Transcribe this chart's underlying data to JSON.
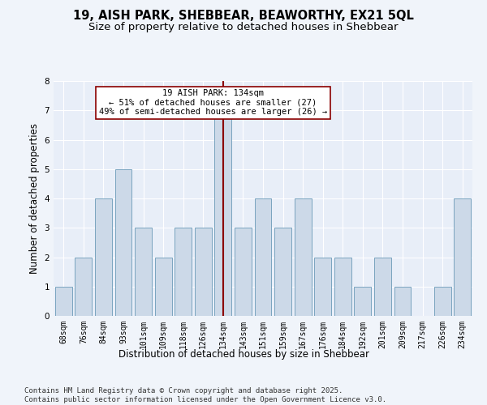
{
  "title": "19, AISH PARK, SHEBBEAR, BEAWORTHY, EX21 5QL",
  "subtitle": "Size of property relative to detached houses in Shebbear",
  "xlabel": "Distribution of detached houses by size in Shebbear",
  "ylabel": "Number of detached properties",
  "categories": [
    "68sqm",
    "76sqm",
    "84sqm",
    "93sqm",
    "101sqm",
    "109sqm",
    "118sqm",
    "126sqm",
    "134sqm",
    "143sqm",
    "151sqm",
    "159sqm",
    "167sqm",
    "176sqm",
    "184sqm",
    "192sqm",
    "201sqm",
    "209sqm",
    "217sqm",
    "226sqm",
    "234sqm"
  ],
  "values": [
    1,
    2,
    4,
    5,
    3,
    2,
    3,
    3,
    7,
    3,
    4,
    3,
    4,
    2,
    2,
    1,
    2,
    1,
    0,
    1,
    4
  ],
  "bar_color": "#ccd9e8",
  "bar_edge_color": "#6a9ab8",
  "vline_color": "#8b0000",
  "vline_index": 8,
  "annotation_text": "19 AISH PARK: 134sqm\n← 51% of detached houses are smaller (27)\n49% of semi-detached houses are larger (26) →",
  "annotation_box_facecolor": "#ffffff",
  "annotation_box_edgecolor": "#8b0000",
  "ylim": [
    0,
    8
  ],
  "yticks": [
    0,
    1,
    2,
    3,
    4,
    5,
    6,
    7,
    8
  ],
  "fig_facecolor": "#f0f4fa",
  "ax_facecolor": "#e8eef8",
  "grid_color": "#ffffff",
  "footer": "Contains HM Land Registry data © Crown copyright and database right 2025.\nContains public sector information licensed under the Open Government Licence v3.0.",
  "title_fontsize": 10.5,
  "subtitle_fontsize": 9.5,
  "axis_label_fontsize": 8.5,
  "tick_fontsize": 7,
  "annotation_fontsize": 7.5,
  "footer_fontsize": 6.5
}
